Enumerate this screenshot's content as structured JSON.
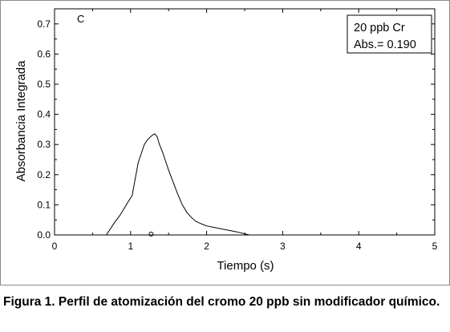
{
  "chart_data": {
    "type": "line",
    "panel_label": "C",
    "xlabel": "Tiempo (s)",
    "ylabel": "Absorbancia Integrada",
    "xlim": [
      0,
      5
    ],
    "ylim": [
      0,
      0.75
    ],
    "x_ticks": [
      "0",
      "1",
      "2",
      "3",
      "4",
      "5"
    ],
    "y_ticks": [
      "0.0",
      "0.1",
      "0.2",
      "0.3",
      "0.4",
      "0.5",
      "0.6",
      "0.7"
    ],
    "grid": false,
    "legend_position": "top-right",
    "legend_lines": [
      "20 ppb Cr",
      "Abs.= 0.190"
    ],
    "series": [
      {
        "x": [
          0.0,
          0.68,
          0.72,
          0.76,
          0.8,
          0.86,
          0.92,
          0.98,
          1.02,
          1.06,
          1.1,
          1.14,
          1.18,
          1.22,
          1.26,
          1.29,
          1.32,
          1.35,
          1.38,
          1.42,
          1.46,
          1.5,
          1.56,
          1.62,
          1.68,
          1.74,
          1.8,
          1.86,
          1.92,
          2.0,
          2.1,
          2.2,
          2.3,
          2.4,
          2.5,
          2.56,
          5.0
        ],
        "y": [
          0.0,
          0.0,
          0.015,
          0.03,
          0.045,
          0.065,
          0.09,
          0.115,
          0.13,
          0.185,
          0.24,
          0.27,
          0.3,
          0.315,
          0.325,
          0.332,
          0.335,
          0.325,
          0.3,
          0.275,
          0.245,
          0.215,
          0.175,
          0.135,
          0.1,
          0.075,
          0.058,
          0.045,
          0.038,
          0.03,
          0.025,
          0.02,
          0.015,
          0.01,
          0.004,
          0.0,
          0.0
        ]
      }
    ],
    "marker": {
      "x": 1.27,
      "y": 0.003
    }
  },
  "caption": "Figura 1. Perfil de atomización del cromo 20 ppb sin modificador químico."
}
